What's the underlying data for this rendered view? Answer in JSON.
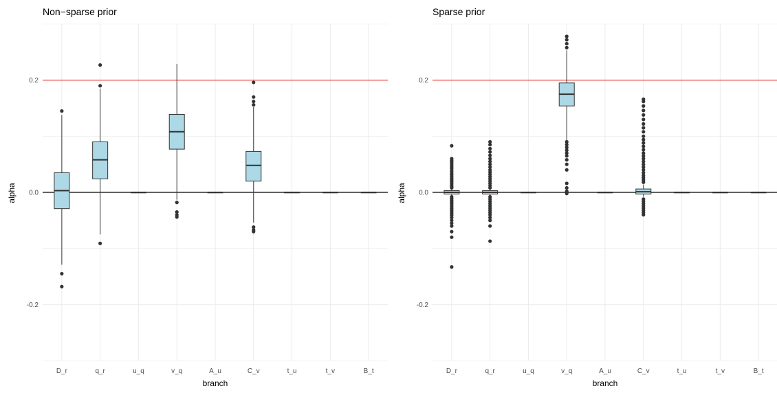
{
  "chart_data": [
    {
      "type": "box",
      "title": "Non−sparse prior",
      "xlabel": "branch",
      "ylabel": "alpha",
      "ylim": [
        -0.3,
        0.3
      ],
      "yticks": [
        -0.2,
        0.0,
        0.2
      ],
      "ytick_labels": [
        "-0.2",
        "0.0",
        "0.2"
      ],
      "grid": true,
      "hlines": [
        {
          "y": 0.2,
          "color": "#e8302a"
        },
        {
          "y": 0.0,
          "color": "#000000"
        }
      ],
      "box_fill": "#add8e6",
      "categories": [
        "D_r",
        "q_r",
        "u_q",
        "v_q",
        "A_u",
        "C_v",
        "t_u",
        "t_v",
        "B_t"
      ],
      "boxes": [
        {
          "q1": -0.029,
          "median": 0.003,
          "q3": 0.035,
          "whisker_low": -0.129,
          "whisker_high": 0.138,
          "outliers": [
            0.145,
            -0.145,
            -0.168
          ]
        },
        {
          "q1": 0.024,
          "median": 0.058,
          "q3": 0.09,
          "whisker_low": -0.075,
          "whisker_high": 0.185,
          "outliers": [
            0.227,
            0.19,
            -0.091
          ]
        },
        {
          "q1": 0.0,
          "median": 0.0,
          "q3": 0.0,
          "whisker_low": 0.0,
          "whisker_high": 0.0,
          "outliers": []
        },
        {
          "q1": 0.077,
          "median": 0.108,
          "q3": 0.139,
          "whisker_low": -0.013,
          "whisker_high": 0.229,
          "outliers": [
            -0.018,
            -0.035,
            -0.04,
            -0.044
          ]
        },
        {
          "q1": 0.0,
          "median": 0.0,
          "q3": 0.0,
          "whisker_low": 0.0,
          "whisker_high": 0.0,
          "outliers": []
        },
        {
          "q1": 0.02,
          "median": 0.048,
          "q3": 0.073,
          "whisker_low": -0.054,
          "whisker_high": 0.152,
          "outliers": [
            0.196,
            0.17,
            0.162,
            0.156,
            -0.062,
            -0.067,
            -0.07
          ]
        },
        {
          "q1": 0.0,
          "median": 0.0,
          "q3": 0.0,
          "whisker_low": 0.0,
          "whisker_high": 0.0,
          "outliers": []
        },
        {
          "q1": 0.0,
          "median": 0.0,
          "q3": 0.0,
          "whisker_low": 0.0,
          "whisker_high": 0.0,
          "outliers": []
        },
        {
          "q1": 0.0,
          "median": 0.0,
          "q3": 0.0,
          "whisker_low": 0.0,
          "whisker_high": 0.0,
          "outliers": []
        }
      ]
    },
    {
      "type": "box",
      "title": "Sparse prior",
      "xlabel": "branch",
      "ylabel": "alpha",
      "ylim": [
        -0.3,
        0.3
      ],
      "yticks": [
        -0.2,
        0.0,
        0.2
      ],
      "ytick_labels": [
        "-0.2",
        "0.0",
        "0.2"
      ],
      "grid": true,
      "hlines": [
        {
          "y": 0.2,
          "color": "#e8302a"
        },
        {
          "y": 0.0,
          "color": "#000000"
        }
      ],
      "box_fill": "#add8e6",
      "categories": [
        "D_r",
        "q_r",
        "u_q",
        "v_q",
        "A_u",
        "C_v",
        "t_u",
        "t_v",
        "B_t"
      ],
      "boxes": [
        {
          "q1": -0.003,
          "median": 0.0,
          "q3": 0.003,
          "whisker_low": -0.005,
          "whisker_high": 0.005,
          "outliers": [
            0.083,
            0.06,
            0.057,
            0.054,
            0.051,
            0.048,
            0.045,
            0.042,
            0.038,
            0.034,
            0.031,
            0.028,
            0.025,
            0.022,
            0.019,
            0.016,
            0.013,
            0.01,
            0.008,
            -0.008,
            -0.011,
            -0.014,
            -0.017,
            -0.02,
            -0.023,
            -0.026,
            -0.029,
            -0.032,
            -0.035,
            -0.038,
            -0.041,
            -0.045,
            -0.05,
            -0.055,
            -0.06,
            -0.07,
            -0.08,
            -0.133
          ]
        },
        {
          "q1": -0.003,
          "median": 0.0,
          "q3": 0.003,
          "whisker_low": -0.005,
          "whisker_high": 0.005,
          "outliers": [
            0.09,
            0.085,
            0.078,
            0.072,
            0.066,
            0.06,
            0.055,
            0.05,
            0.045,
            0.04,
            0.036,
            0.032,
            0.028,
            0.024,
            0.02,
            0.016,
            0.012,
            0.008,
            -0.008,
            -0.012,
            -0.016,
            -0.02,
            -0.024,
            -0.028,
            -0.032,
            -0.036,
            -0.04,
            -0.045,
            -0.05,
            -0.06,
            -0.087
          ]
        },
        {
          "q1": 0.0,
          "median": 0.0,
          "q3": 0.0,
          "whisker_low": 0.0,
          "whisker_high": 0.0,
          "outliers": []
        },
        {
          "q1": 0.154,
          "median": 0.175,
          "q3": 0.195,
          "whisker_low": 0.093,
          "whisker_high": 0.253,
          "outliers": [
            0.278,
            0.272,
            0.265,
            0.258,
            0.09,
            0.085,
            0.08,
            0.075,
            0.07,
            0.065,
            0.058,
            0.05,
            0.04,
            0.016,
            0.008,
            0.002,
            -0.002
          ]
        },
        {
          "q1": 0.0,
          "median": 0.0,
          "q3": 0.0,
          "whisker_low": 0.0,
          "whisker_high": 0.0,
          "outliers": []
        },
        {
          "q1": -0.003,
          "median": 0.001,
          "q3": 0.006,
          "whisker_low": -0.008,
          "whisker_high": 0.014,
          "outliers": [
            0.166,
            0.162,
            0.154,
            0.146,
            0.138,
            0.13,
            0.122,
            0.115,
            0.108,
            0.1,
            0.094,
            0.088,
            0.082,
            0.076,
            0.07,
            0.065,
            0.06,
            0.055,
            0.05,
            0.045,
            0.04,
            0.035,
            0.03,
            0.026,
            0.022,
            0.018,
            -0.012,
            -0.016,
            -0.02,
            -0.024,
            -0.028,
            -0.032,
            -0.036,
            -0.04
          ]
        },
        {
          "q1": 0.0,
          "median": 0.0,
          "q3": 0.0,
          "whisker_low": 0.0,
          "whisker_high": 0.0,
          "outliers": []
        },
        {
          "q1": 0.0,
          "median": 0.0,
          "q3": 0.0,
          "whisker_low": 0.0,
          "whisker_high": 0.0,
          "outliers": []
        },
        {
          "q1": 0.0,
          "median": 0.0,
          "q3": 0.0,
          "whisker_low": 0.0,
          "whisker_high": 0.0,
          "outliers": []
        }
      ]
    }
  ]
}
